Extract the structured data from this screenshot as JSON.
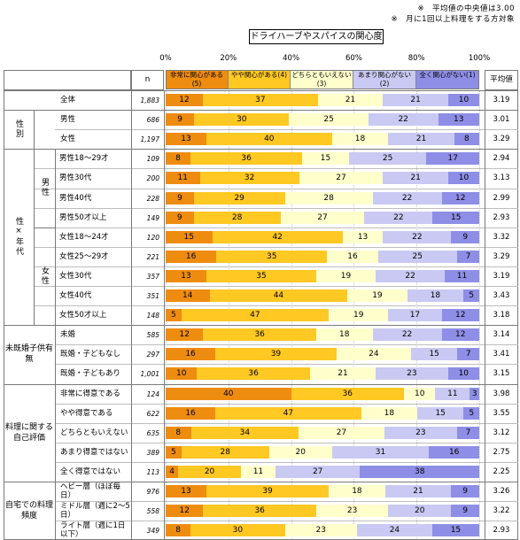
{
  "notes": [
    "※　平均値の中央値は3.00",
    "※　月に1回以上料理をする方対象"
  ],
  "chart_data": {
    "type": "bar",
    "stacked": true,
    "orientation": "horizontal",
    "percent_scale": true,
    "title": "ドライハーブやスパイスの関心度",
    "xlim": [
      0,
      100
    ],
    "xticks": [
      "0%",
      "20%",
      "40%",
      "60%",
      "80%",
      "100%"
    ],
    "n_header": "n",
    "avg_header": "平均値",
    "legend": [
      {
        "label": "非常に関心がある(5)",
        "color": "#ee8c10"
      },
      {
        "label": "やや関心がある(4)",
        "color": "#ffc822"
      },
      {
        "label": "どちらともいえない(3)",
        "color": "#ffffcc"
      },
      {
        "label": "あまり関心がない(2)",
        "color": "#c9c9f3"
      },
      {
        "label": "全く関心がない(1)",
        "color": "#8e8ee6"
      }
    ],
    "groups": [
      {
        "label": "",
        "sub": "",
        "rows": [
          0
        ]
      },
      {
        "label": "性別",
        "sub": "",
        "rows": [
          1,
          2
        ]
      },
      {
        "label": "性×年代",
        "sub": "男性",
        "rows": [
          3,
          4,
          5,
          6
        ]
      },
      {
        "label": "",
        "sub": "女性",
        "rows": [
          7,
          8,
          9,
          10,
          11
        ]
      },
      {
        "label": "未既婚子供有無",
        "sub": "",
        "rows": [
          12,
          13,
          14
        ]
      },
      {
        "label": "料理に関する自己評価",
        "sub": "",
        "rows": [
          15,
          16,
          17,
          18,
          19
        ]
      },
      {
        "label": "自宅での料理頻度",
        "sub": "",
        "rows": [
          20,
          21,
          22
        ]
      }
    ],
    "rows": [
      {
        "label": "全体",
        "n": "1,883",
        "values": [
          12,
          37,
          21,
          21,
          10
        ],
        "avg": "3.19"
      },
      {
        "label": "男性",
        "n": "686",
        "values": [
          9,
          30,
          25,
          22,
          13
        ],
        "avg": "3.01"
      },
      {
        "label": "女性",
        "n": "1,197",
        "values": [
          13,
          40,
          18,
          21,
          8
        ],
        "avg": "3.29"
      },
      {
        "label": "男性18～29才",
        "n": "109",
        "values": [
          8,
          36,
          15,
          25,
          17
        ],
        "avg": "2.94"
      },
      {
        "label": "男性30代",
        "n": "200",
        "values": [
          11,
          32,
          27,
          21,
          10
        ],
        "avg": "3.13"
      },
      {
        "label": "男性40代",
        "n": "228",
        "values": [
          9,
          29,
          28,
          22,
          12
        ],
        "avg": "2.99"
      },
      {
        "label": "男性50才以上",
        "n": "149",
        "values": [
          9,
          28,
          27,
          22,
          15
        ],
        "avg": "2.93"
      },
      {
        "label": "女性18～24才",
        "n": "120",
        "values": [
          15,
          42,
          13,
          22,
          9
        ],
        "avg": "3.32"
      },
      {
        "label": "女性25～29才",
        "n": "221",
        "values": [
          16,
          35,
          16,
          25,
          7
        ],
        "avg": "3.29"
      },
      {
        "label": "女性30代",
        "n": "357",
        "values": [
          13,
          35,
          19,
          22,
          11
        ],
        "avg": "3.19"
      },
      {
        "label": "女性40代",
        "n": "351",
        "values": [
          14,
          44,
          19,
          18,
          5
        ],
        "avg": "3.43"
      },
      {
        "label": "女性50才以上",
        "n": "148",
        "values": [
          5,
          47,
          19,
          17,
          12
        ],
        "avg": "3.18"
      },
      {
        "label": "未婚",
        "n": "585",
        "values": [
          12,
          36,
          18,
          22,
          12
        ],
        "avg": "3.14"
      },
      {
        "label": "既婚・子どもなし",
        "n": "297",
        "values": [
          16,
          39,
          24,
          15,
          7
        ],
        "avg": "3.41"
      },
      {
        "label": "既婚・子どもあり",
        "n": "1,001",
        "values": [
          10,
          36,
          21,
          23,
          10
        ],
        "avg": "3.15"
      },
      {
        "label": "非常に得意である",
        "n": "124",
        "values": [
          40,
          36,
          10,
          11,
          3
        ],
        "avg": "3.98"
      },
      {
        "label": "やや得意である",
        "n": "622",
        "values": [
          16,
          47,
          18,
          15,
          5
        ],
        "avg": "3.55"
      },
      {
        "label": "どちらともいえない",
        "n": "635",
        "values": [
          8,
          34,
          27,
          23,
          7
        ],
        "avg": "3.12"
      },
      {
        "label": "あまり得意ではない",
        "n": "389",
        "values": [
          5,
          28,
          20,
          31,
          16
        ],
        "avg": "2.75"
      },
      {
        "label": "全く得意ではない",
        "n": "113",
        "values": [
          4,
          20,
          11,
          27,
          38
        ],
        "avg": "2.25"
      },
      {
        "label": "ヘビー層（ほぼ毎日）",
        "n": "976",
        "values": [
          13,
          39,
          18,
          21,
          9
        ],
        "avg": "3.26"
      },
      {
        "label": "ミドル層（週に2～5日）",
        "n": "558",
        "values": [
          12,
          36,
          23,
          20,
          9
        ],
        "avg": "3.22"
      },
      {
        "label": "ライト層（週に1日以下）",
        "n": "349",
        "values": [
          8,
          30,
          23,
          24,
          15
        ],
        "avg": "2.93"
      }
    ]
  }
}
